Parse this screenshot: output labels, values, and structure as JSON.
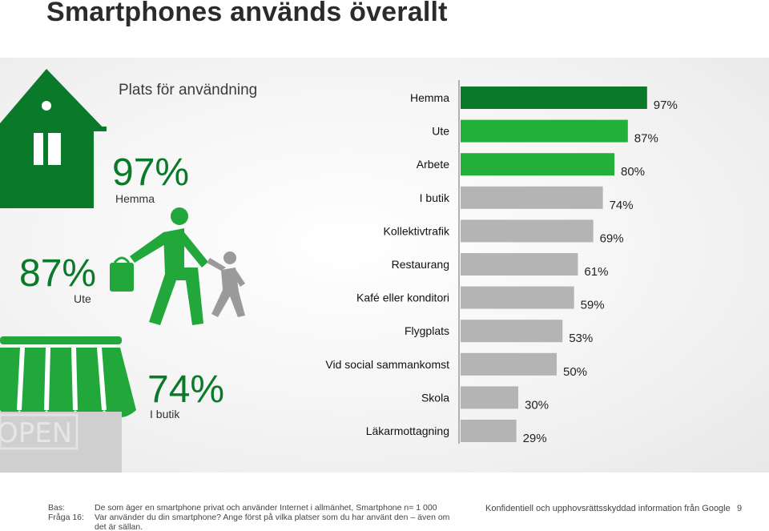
{
  "title": "Smartphones används överallt",
  "colors": {
    "dark_green": "#0a7a2a",
    "green": "#22b03a",
    "grey_bar": "#b4b4b4",
    "axis": "#9a9a9a"
  },
  "highlights": [
    {
      "value": "97%",
      "label": "Hemma",
      "icon": "house-icon"
    },
    {
      "value": "87%",
      "label": "Ute",
      "icon": "walking-people-icon"
    },
    {
      "value": "74%",
      "label": "I butik",
      "icon": "shop-awning-icon"
    }
  ],
  "shop_sign_text": "OPEN",
  "chart_data": {
    "type": "bar",
    "orientation": "horizontal",
    "title": "Plats för användning",
    "categories": [
      "Hemma",
      "Ute",
      "Arbete",
      "I butik",
      "Kollektivtrafik",
      "Restaurang",
      "Kafé eller konditori",
      "Flygplats",
      "Vid social sammankomst",
      "Skola",
      "Läkarmottagning"
    ],
    "values": [
      97,
      87,
      80,
      74,
      69,
      61,
      59,
      53,
      50,
      30,
      29
    ],
    "value_labels": [
      "97%",
      "87%",
      "80%",
      "74%",
      "69%",
      "61%",
      "59%",
      "53%",
      "50%",
      "30%",
      "29%"
    ],
    "bar_colors": [
      "#0a7a2a",
      "#22b03a",
      "#22b03a",
      "#b4b4b4",
      "#b4b4b4",
      "#b4b4b4",
      "#b4b4b4",
      "#b4b4b4",
      "#b4b4b4",
      "#b4b4b4",
      "#b4b4b4"
    ],
    "xlim": [
      0,
      100
    ],
    "grid": false
  },
  "footer": {
    "base_key": "Bas:",
    "base_text": "De som äger en smartphone privat och använder Internet i allmänhet, Smartphone n= 1 000",
    "question_key": "Fråga 16:",
    "question_line1": "Var använder du din smartphone? Ange först på vilka platser som du har använt den – även om",
    "question_line2": "det är sällan.",
    "confidential": "Konfidentiell och upphovsrättsskyddad information från Google",
    "page_number": "9"
  }
}
